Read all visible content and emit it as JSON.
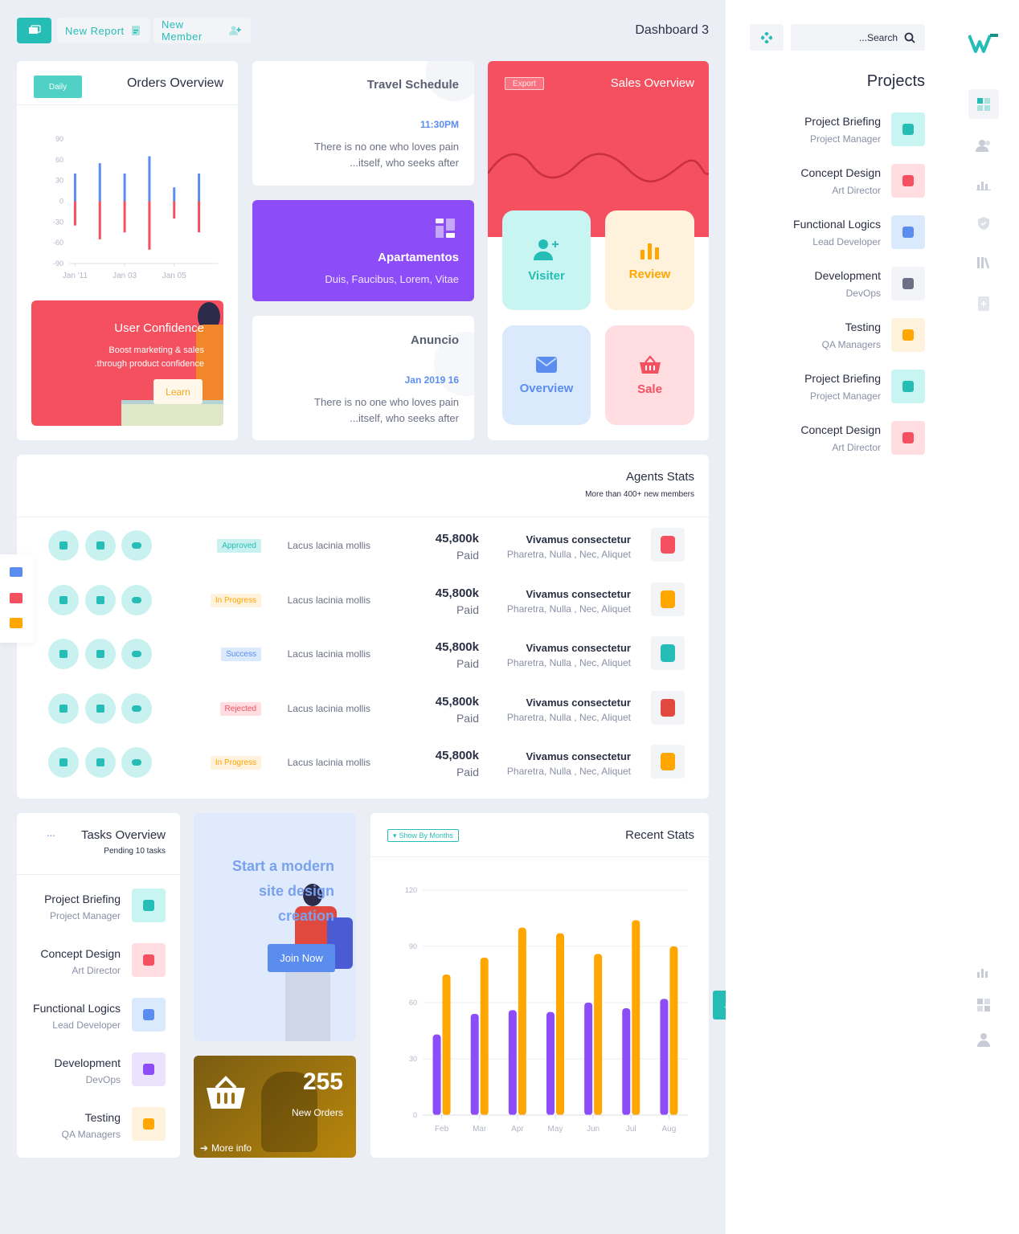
{
  "header": {
    "new_report": "New Report",
    "new_member": "New Member",
    "title": "Dashboard 3"
  },
  "orders_overview": {
    "title": "Orders Overview",
    "tab": "Daily"
  },
  "user_confidence": {
    "title": "User Confidence",
    "line1": "Boost marketing & sales",
    "line2": ".through product confidence",
    "button": "Learn"
  },
  "travel": {
    "title": "Travel Schedule",
    "time": "11:30PM",
    "line1": "There is no one who loves pain",
    "line2": "...itself, who seeks after"
  },
  "apartamentos": {
    "title": "Apartamentos",
    "sub": "Duis, Faucibus, Lorem, Vitae"
  },
  "anuncio": {
    "title": "Anuncio",
    "date": "Jan 2019 16",
    "line1": "There is no one who loves pain",
    "line2": "...itself, who seeks after"
  },
  "sales": {
    "title": "Sales Overview",
    "export": "Export",
    "tiles": [
      "Visiter",
      "Review",
      "Overview",
      "Sale"
    ]
  },
  "agents": {
    "title": "Agents Stats",
    "subtitle": "More than 400+ new members",
    "rows": [
      {
        "status": "Approved",
        "desc": "Lacus lacinia mollis",
        "amount": "45,800k",
        "paid": "Paid",
        "name": "Vivamus consectetur",
        "tags": "Pharetra, Nulla , Nec, Aliquet"
      },
      {
        "status": "In Progress",
        "desc": "Lacus lacinia mollis",
        "amount": "45,800k",
        "paid": "Paid",
        "name": "Vivamus consectetur",
        "tags": "Pharetra, Nulla , Nec, Aliquet"
      },
      {
        "status": "Success",
        "desc": "Lacus lacinia mollis",
        "amount": "45,800k",
        "paid": "Paid",
        "name": "Vivamus consectetur",
        "tags": "Pharetra, Nulla , Nec, Aliquet"
      },
      {
        "status": "Rejected",
        "desc": "Lacus lacinia mollis",
        "amount": "45,800k",
        "paid": "Paid",
        "name": "Vivamus consectetur",
        "tags": "Pharetra, Nulla , Nec, Aliquet"
      },
      {
        "status": "In Progress",
        "desc": "Lacus lacinia mollis",
        "amount": "45,800k",
        "paid": "Paid",
        "name": "Vivamus consectetur",
        "tags": "Pharetra, Nulla , Nec, Aliquet"
      }
    ]
  },
  "tasks": {
    "title": "Tasks Overview",
    "subtitle": "Pending 10 tasks",
    "dots": "...",
    "items": [
      {
        "title": "Project Briefing",
        "sub": "Project Manager"
      },
      {
        "title": "Concept Design",
        "sub": "Art Director"
      },
      {
        "title": "Functional Logics",
        "sub": "Lead Developer"
      },
      {
        "title": "Development",
        "sub": "DevOps"
      },
      {
        "title": "Testing",
        "sub": "QA Managers"
      }
    ]
  },
  "promo": {
    "line1": "Start a modern",
    "line2": "site design",
    "line3": "creation",
    "button": "Join Now"
  },
  "orders_box": {
    "count": "255",
    "label": "New Orders",
    "more": "More info"
  },
  "recent": {
    "title": "Recent Stats",
    "filter": "Show By Months"
  },
  "sidebar": {
    "search_placeholder": "...Search",
    "projects_title": "Projects",
    "projects": [
      {
        "title": "Project Briefing",
        "sub": "Project Manager"
      },
      {
        "title": "Concept Design",
        "sub": "Art Director"
      },
      {
        "title": "Functional Logics",
        "sub": "Lead Developer"
      },
      {
        "title": "Development",
        "sub": "DevOps"
      },
      {
        "title": "Testing",
        "sub": "QA Managers"
      },
      {
        "title": "Project Briefing",
        "sub": "Project Manager"
      },
      {
        "title": "Concept Design",
        "sub": "Art Director"
      }
    ]
  },
  "colors": {
    "accent": "#26bdb6",
    "red": "#f4505f",
    "purple": "#8c4cf7",
    "orange": "#ffa600",
    "blue": "#5b8def"
  },
  "chart_data": [
    {
      "type": "bar",
      "title": "Orders Overview",
      "categories": [
        "Jan '11",
        "",
        "Jan 03",
        "",
        "Jan 05",
        ""
      ],
      "yticks": [
        90,
        60,
        30,
        0,
        -30,
        -60,
        -90
      ],
      "ylim": [
        -90,
        90
      ],
      "series": [
        {
          "values": [
            40,
            55,
            40,
            65,
            20,
            40
          ]
        },
        {
          "values": [
            -35,
            -55,
            -45,
            -70,
            -25,
            -45
          ]
        }
      ]
    },
    {
      "type": "bar",
      "title": "Recent Stats",
      "categories": [
        "Feb",
        "Mar",
        "Apr",
        "May",
        "Jun",
        "Jul",
        "Aug"
      ],
      "yticks": [
        0,
        30,
        60,
        90,
        120
      ],
      "ylim": [
        0,
        120
      ],
      "series": [
        {
          "values": [
            43,
            54,
            56,
            55,
            60,
            57,
            62
          ]
        },
        {
          "values": [
            75,
            84,
            100,
            97,
            86,
            104,
            90
          ]
        }
      ]
    }
  ]
}
